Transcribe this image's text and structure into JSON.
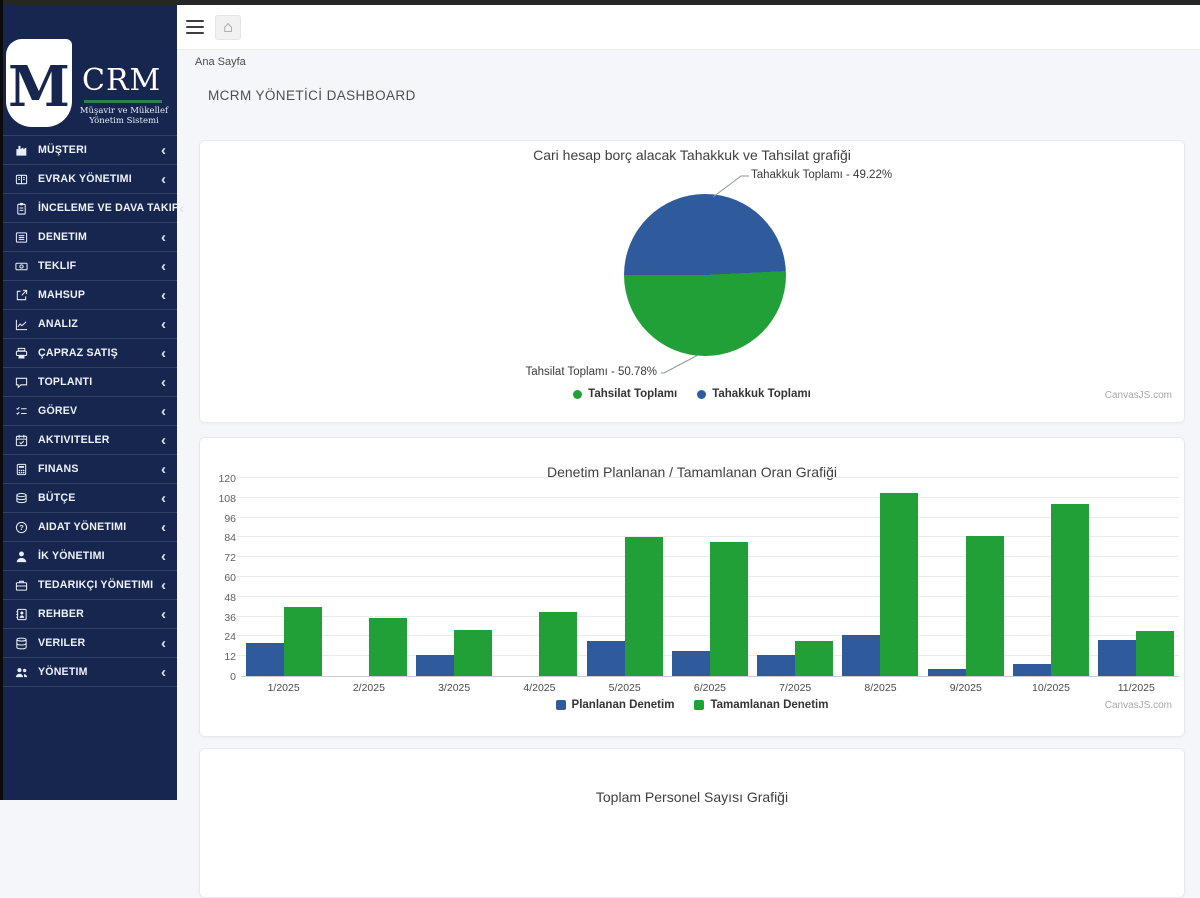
{
  "chrome": {
    "top_strip_color": "#262626"
  },
  "sidebar": {
    "bg_color": "#17264f",
    "logo": {
      "monogram": "M",
      "brand": "CRM",
      "tagline1": "Müşavir ve Mükellef",
      "tagline2": "Yönetim Sistemi",
      "underline_color": "#2f7e55"
    },
    "items": [
      {
        "label": "MÜŞTERI",
        "icon": "industry-icon"
      },
      {
        "label": "EVRAK YÖNETIMI",
        "icon": "book-icon"
      },
      {
        "label": "İNCELEME VE DAVA TAKIP",
        "icon": "clipboard-icon"
      },
      {
        "label": "DENETIM",
        "icon": "list-icon"
      },
      {
        "label": "TEKLIF",
        "icon": "money-bill-icon"
      },
      {
        "label": "MAHSUP",
        "icon": "external-link-icon"
      },
      {
        "label": "ANALIZ",
        "icon": "chart-line-icon"
      },
      {
        "label": "ÇAPRAZ SATIŞ",
        "icon": "printer-icon"
      },
      {
        "label": "TOPLANTI",
        "icon": "comment-icon"
      },
      {
        "label": "GÖREV",
        "icon": "tasks-icon"
      },
      {
        "label": "AKTIVITELER",
        "icon": "calendar-check-icon"
      },
      {
        "label": "FINANS",
        "icon": "calculator-icon"
      },
      {
        "label": "BÜTÇE",
        "icon": "coins-icon"
      },
      {
        "label": "AIDAT YÖNETIMI",
        "icon": "question-circle-icon"
      },
      {
        "label": "İK YÖNETIMI",
        "icon": "user-icon"
      },
      {
        "label": "TEDARIKÇI YÖNETIMI",
        "icon": "briefcase-icon"
      },
      {
        "label": "REHBER",
        "icon": "address-book-icon"
      },
      {
        "label": "VERILER",
        "icon": "database-icon"
      },
      {
        "label": "YÖNETIM",
        "icon": "users-icon"
      }
    ]
  },
  "topbar": {
    "breadcrumb": "Ana Sayfa"
  },
  "page": {
    "title": "MCRM YÖNETİCİ DASHBOARD"
  },
  "colors": {
    "blue": "#2f5b9d",
    "green": "#21a038"
  },
  "chart_data": [
    {
      "type": "pie",
      "title": "Cari hesap borç alacak Tahakkuk ve Tahsilat grafiği",
      "slices": [
        {
          "label": "Tahakkuk Toplamı",
          "percent": 49.22,
          "color": "#2f5b9d",
          "callout": "Tahakkuk Toplamı - 49.22%"
        },
        {
          "label": "Tahsilat Toplamı",
          "percent": 50.78,
          "color": "#21a038",
          "callout": "Tahsilat Toplamı - 50.78%"
        }
      ],
      "legend": [
        {
          "label": "Tahsilat Toplamı",
          "color": "#21a038"
        },
        {
          "label": "Tahakkuk Toplamı",
          "color": "#2f5b9d"
        }
      ],
      "legend_position": "bottom",
      "watermark": "CanvasJS.com"
    },
    {
      "type": "bar",
      "title": "Denetim Planlanan / Tamamlanan Oran Grafiği",
      "categories": [
        "1/2025",
        "2/2025",
        "3/2025",
        "4/2025",
        "5/2025",
        "6/2025",
        "7/2025",
        "8/2025",
        "9/2025",
        "10/2025",
        "11/2025"
      ],
      "series": [
        {
          "name": "Planlanan Denetim",
          "color": "#2f5b9d",
          "values": [
            20,
            0,
            13,
            0,
            21,
            15,
            13,
            25,
            4,
            7,
            22
          ]
        },
        {
          "name": "Tamamlanan Denetim",
          "color": "#21a038",
          "values": [
            42,
            35,
            28,
            39,
            84,
            81,
            21,
            111,
            85,
            104,
            27
          ]
        }
      ],
      "ylim": [
        0,
        120
      ],
      "yticks": [
        0,
        12,
        24,
        36,
        48,
        60,
        72,
        84,
        96,
        108,
        120
      ],
      "grid": true,
      "legend_position": "bottom",
      "watermark": "CanvasJS.com"
    },
    {
      "type": "bar",
      "title": "Toplam Personel Sayısı Grafiği"
    }
  ]
}
